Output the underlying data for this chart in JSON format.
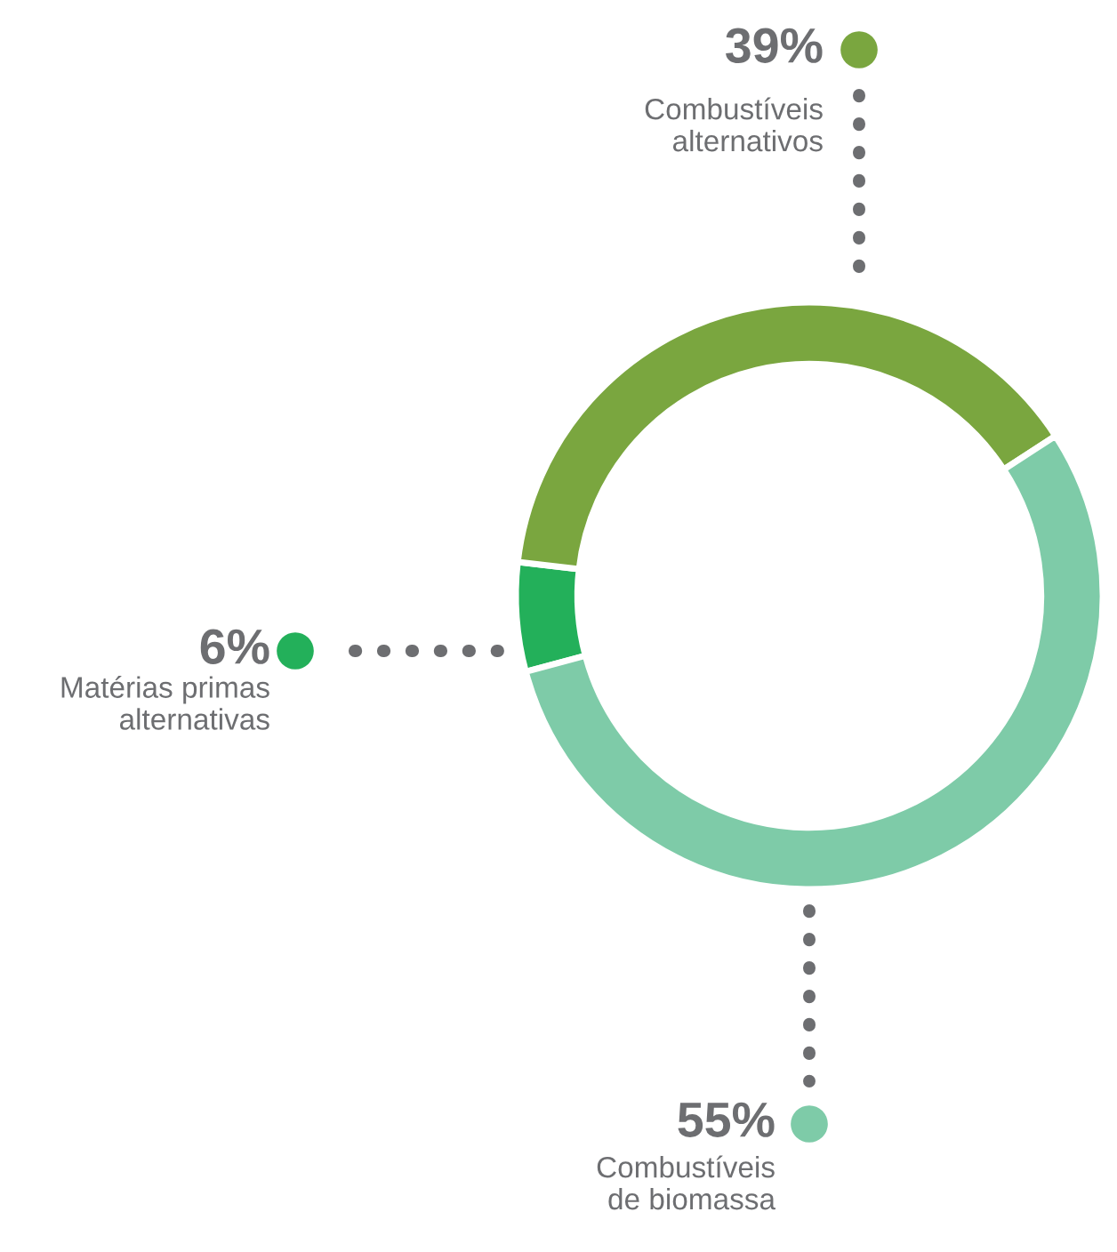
{
  "chart_data": {
    "type": "donut",
    "categories": [
      "Matérias primas\nalternativas",
      "Combustíveis\nalternativos",
      "Combustíveis\nde biomassa"
    ],
    "values": [
      6,
      39,
      55
    ],
    "value_labels": [
      "6%",
      "39%",
      "55%"
    ],
    "colors": [
      "#23b05a",
      "#7aa63f",
      "#7ecba8"
    ]
  }
}
